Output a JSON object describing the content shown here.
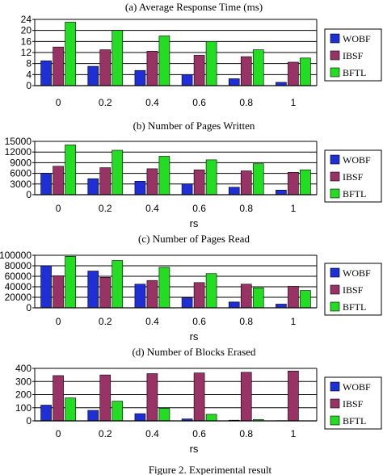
{
  "caption": "Figure 2. Experimental result",
  "legend_labels": [
    "WOBF",
    "IBSF",
    "BFTL"
  ],
  "colors": {
    "WOBF": "#1f2fd6",
    "IBSF": "#993366",
    "BFTL": "#22dd22"
  },
  "chart_data": [
    {
      "type": "bar",
      "title": "(a) Average Response Time (ms)",
      "xlabel": "",
      "ylabel": "",
      "categories": [
        "0",
        "0.2",
        "0.4",
        "0.6",
        "0.8",
        "1"
      ],
      "yticks": [
        0,
        4,
        8,
        12,
        16,
        20,
        24
      ],
      "ylim": [
        0,
        24
      ],
      "grid": true,
      "legend": "right",
      "series": [
        {
          "name": "WOBF",
          "values": [
            9,
            7,
            5.5,
            4,
            2.5,
            1.2
          ]
        },
        {
          "name": "IBSF",
          "values": [
            14,
            13,
            12.5,
            11,
            10.5,
            8.5
          ]
        },
        {
          "name": "BFTL",
          "values": [
            23,
            20,
            18,
            16,
            13,
            10
          ]
        }
      ]
    },
    {
      "type": "bar",
      "title": "(b) Number of Pages Written",
      "xlabel": "rs",
      "ylabel": "",
      "categories": [
        "0",
        "0.2",
        "0.4",
        "0.6",
        "0.8",
        "1"
      ],
      "yticks": [
        0,
        3000,
        6000,
        9000,
        12000,
        15000
      ],
      "ylim": [
        0,
        15000
      ],
      "grid": true,
      "legend": "right",
      "series": [
        {
          "name": "WOBF",
          "values": [
            6000,
            4500,
            3800,
            3000,
            2100,
            1300
          ]
        },
        {
          "name": "IBSF",
          "values": [
            8000,
            7600,
            7300,
            7000,
            6700,
            6300
          ]
        },
        {
          "name": "BFTL",
          "values": [
            14000,
            12500,
            10800,
            9800,
            8700,
            7000
          ]
        }
      ]
    },
    {
      "type": "bar",
      "title": "(c) Number of Pages Read",
      "xlabel": "rs",
      "ylabel": "",
      "categories": [
        "0",
        "0.2",
        "0.4",
        "0.6",
        "0.8",
        "1"
      ],
      "yticks": [
        0,
        20000,
        40000,
        60000,
        80000,
        100000
      ],
      "ylim": [
        0,
        100000
      ],
      "grid": true,
      "legend": "right",
      "series": [
        {
          "name": "WOBF",
          "values": [
            80000,
            70000,
            45000,
            19000,
            11000,
            7000
          ]
        },
        {
          "name": "IBSF",
          "values": [
            61000,
            58000,
            52000,
            48000,
            45000,
            41000
          ]
        },
        {
          "name": "BFTL",
          "values": [
            98000,
            90000,
            77000,
            65000,
            38000,
            33000
          ]
        }
      ]
    },
    {
      "type": "bar",
      "title": "(d) Number of Blocks Erased",
      "xlabel": "rs",
      "ylabel": "",
      "categories": [
        "0",
        "0.2",
        "0.4",
        "0.6",
        "0.8",
        "1"
      ],
      "yticks": [
        0,
        100,
        200,
        300,
        400
      ],
      "ylim": [
        0,
        400
      ],
      "grid": true,
      "legend": "right",
      "series": [
        {
          "name": "WOBF",
          "values": [
            120,
            80,
            55,
            15,
            5,
            2
          ]
        },
        {
          "name": "IBSF",
          "values": [
            345,
            350,
            360,
            365,
            370,
            380
          ]
        },
        {
          "name": "BFTL",
          "values": [
            175,
            150,
            95,
            50,
            10,
            0
          ]
        }
      ]
    }
  ]
}
